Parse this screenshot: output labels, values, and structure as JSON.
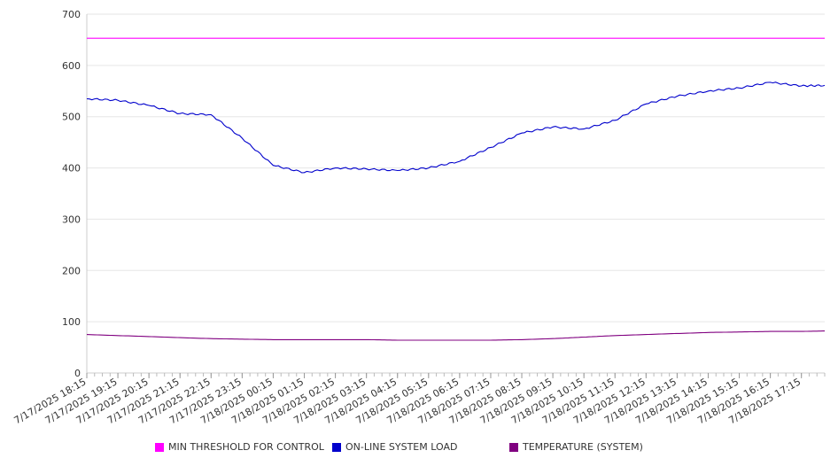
{
  "chart_data": {
    "type": "line",
    "ylim": [
      0,
      700
    ],
    "y_ticks": [
      "0",
      "100",
      "200",
      "300",
      "400",
      "500",
      "600",
      "700"
    ],
    "x_tick_labels": [
      "7/17/2025 18:15",
      "7/17/2025 19:15",
      "7/17/2025 20:15",
      "7/17/2025 21:15",
      "7/17/2025 22:15",
      "7/17/2025 23:15",
      "7/18/2025 00:15",
      "7/18/2025 01:15",
      "7/18/2025 02:15",
      "7/18/2025 03:15",
      "7/18/2025 04:15",
      "7/18/2025 05:15",
      "7/18/2025 06:15",
      "7/18/2025 07:15",
      "7/18/2025 08:15",
      "7/18/2025 09:15",
      "7/18/2025 10:15",
      "7/18/2025 11:15",
      "7/18/2025 12:15",
      "7/18/2025 13:15",
      "7/18/2025 14:15",
      "7/18/2025 15:15",
      "7/18/2025 16:15",
      "7/18/2025 17:15"
    ],
    "x_range": [
      "7/17/2025 18:15",
      "7/18/2025 18:00"
    ],
    "grid": "horizontal",
    "legend_position": "bottom",
    "series": [
      {
        "name": "MIN THRESHOLD FOR CONTROL",
        "color": "#ff00ff",
        "points": [
          [
            "7/17/2025 18:15",
            653
          ],
          [
            "7/18/2025 18:00",
            653
          ]
        ]
      },
      {
        "name": "ON-LINE SYSTEM LOAD",
        "color": "#0000cc",
        "points": [
          [
            "7/17/2025 18:15",
            535
          ],
          [
            "7/17/2025 19:15",
            532
          ],
          [
            "7/17/2025 20:15",
            522
          ],
          [
            "7/17/2025 21:15",
            506
          ],
          [
            "7/17/2025 22:15",
            504
          ],
          [
            "7/17/2025 23:15",
            458
          ],
          [
            "7/18/2025 00:15",
            405
          ],
          [
            "7/18/2025 01:15",
            391
          ],
          [
            "7/18/2025 02:15",
            400
          ],
          [
            "7/18/2025 03:15",
            398
          ],
          [
            "7/18/2025 04:15",
            395
          ],
          [
            "7/18/2025 05:15",
            400
          ],
          [
            "7/18/2025 06:15",
            413
          ],
          [
            "7/18/2025 07:15",
            440
          ],
          [
            "7/18/2025 08:15",
            468
          ],
          [
            "7/18/2025 09:15",
            480
          ],
          [
            "7/18/2025 10:15",
            476
          ],
          [
            "7/18/2025 11:15",
            493
          ],
          [
            "7/18/2025 12:15",
            525
          ],
          [
            "7/18/2025 13:15",
            540
          ],
          [
            "7/18/2025 14:15",
            550
          ],
          [
            "7/18/2025 15:15",
            556
          ],
          [
            "7/18/2025 16:15",
            567
          ],
          [
            "7/18/2025 17:15",
            560
          ],
          [
            "7/18/2025 18:00",
            561
          ]
        ]
      },
      {
        "name": "TEMPERATURE (SYSTEM)",
        "color": "#800080",
        "points": [
          [
            "7/17/2025 18:15",
            75
          ],
          [
            "7/17/2025 19:15",
            73
          ],
          [
            "7/17/2025 20:15",
            71
          ],
          [
            "7/17/2025 21:15",
            69
          ],
          [
            "7/17/2025 22:15",
            67
          ],
          [
            "7/17/2025 23:15",
            66
          ],
          [
            "7/18/2025 00:15",
            65
          ],
          [
            "7/18/2025 01:15",
            65
          ],
          [
            "7/18/2025 02:15",
            65
          ],
          [
            "7/18/2025 03:15",
            65
          ],
          [
            "7/18/2025 04:15",
            64
          ],
          [
            "7/18/2025 05:15",
            64
          ],
          [
            "7/18/2025 06:15",
            64
          ],
          [
            "7/18/2025 07:15",
            64
          ],
          [
            "7/18/2025 08:15",
            65
          ],
          [
            "7/18/2025 09:15",
            67
          ],
          [
            "7/18/2025 10:15",
            70
          ],
          [
            "7/18/2025 11:15",
            73
          ],
          [
            "7/18/2025 12:15",
            75
          ],
          [
            "7/18/2025 13:15",
            77
          ],
          [
            "7/18/2025 14:15",
            79
          ],
          [
            "7/18/2025 15:15",
            80
          ],
          [
            "7/18/2025 16:15",
            81
          ],
          [
            "7/18/2025 17:15",
            81
          ],
          [
            "7/18/2025 18:00",
            82
          ]
        ]
      }
    ]
  }
}
